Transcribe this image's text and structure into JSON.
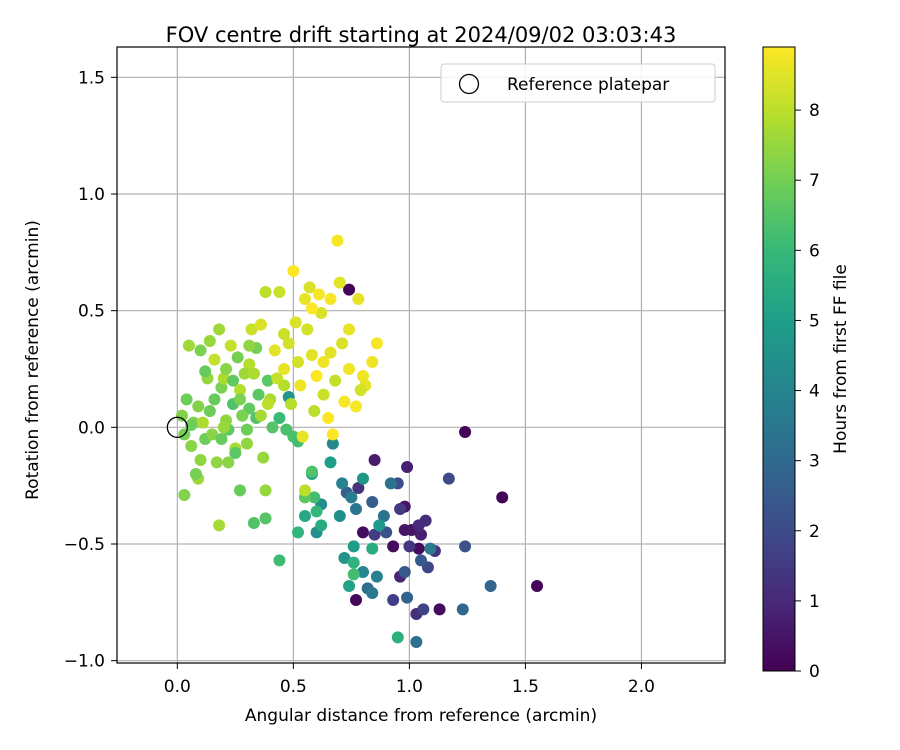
{
  "chart_data": {
    "type": "scatter",
    "title": "FOV centre drift starting at 2024/09/02 03:03:43",
    "xlabel": "Angular distance from reference (arcmin)",
    "ylabel": "Rotation from reference (arcmin)",
    "xlim": [
      -0.26,
      2.36
    ],
    "ylim": [
      -1.01,
      1.63
    ],
    "xticks": [
      0.0,
      0.5,
      1.0,
      1.5,
      2.0
    ],
    "xtick_labels": [
      "0.0",
      "0.5",
      "1.0",
      "1.5",
      "2.0"
    ],
    "yticks": [
      -1.0,
      -0.5,
      0.0,
      0.5,
      1.0,
      1.5
    ],
    "ytick_labels": [
      "−1.0",
      "−0.5",
      "0.0",
      "0.5",
      "1.0",
      "1.5"
    ],
    "grid": true,
    "colormap": "viridis",
    "colorbar": {
      "label": "Hours from first FF file",
      "range": [
        0,
        8.9
      ],
      "ticks": [
        0,
        1,
        2,
        3,
        4,
        5,
        6,
        7,
        8
      ],
      "tick_labels": [
        "0",
        "1",
        "2",
        "3",
        "4",
        "5",
        "6",
        "7",
        "8"
      ]
    },
    "legend": {
      "placement": "top-right",
      "entries": [
        {
          "label": "Reference platepar",
          "marker": "open-circle"
        }
      ]
    },
    "reference": {
      "x": 0.0,
      "y": 0.0
    },
    "points": [
      {
        "x": 1.24,
        "y": -0.02,
        "h": 0.1
      },
      {
        "x": 1.4,
        "y": -0.3,
        "h": 0.1
      },
      {
        "x": 1.55,
        "y": -0.68,
        "h": 0.1
      },
      {
        "x": 0.74,
        "y": 0.59,
        "h": 0.1
      },
      {
        "x": 0.77,
        "y": -0.74,
        "h": 0.2
      },
      {
        "x": 0.93,
        "y": -0.51,
        "h": 0.3
      },
      {
        "x": 0.8,
        "y": -0.45,
        "h": 0.3
      },
      {
        "x": 1.13,
        "y": -0.78,
        "h": 0.3
      },
      {
        "x": 1.04,
        "y": -0.52,
        "h": 0.3
      },
      {
        "x": 0.98,
        "y": -0.34,
        "h": 0.5
      },
      {
        "x": 1.01,
        "y": -0.44,
        "h": 0.5
      },
      {
        "x": 0.98,
        "y": -0.44,
        "h": 0.5
      },
      {
        "x": 0.85,
        "y": -0.14,
        "h": 0.7
      },
      {
        "x": 0.99,
        "y": -0.17,
        "h": 0.8
      },
      {
        "x": 1.05,
        "y": -0.46,
        "h": 0.8
      },
      {
        "x": 0.96,
        "y": -0.64,
        "h": 0.9
      },
      {
        "x": 1.04,
        "y": -0.42,
        "h": 1.0
      },
      {
        "x": 1.07,
        "y": -0.4,
        "h": 1.1
      },
      {
        "x": 1.03,
        "y": -0.8,
        "h": 1.2
      },
      {
        "x": 1.11,
        "y": -0.53,
        "h": 1.3
      },
      {
        "x": 0.78,
        "y": -0.26,
        "h": 1.3
      },
      {
        "x": 1.0,
        "y": -0.51,
        "h": 1.4
      },
      {
        "x": 0.96,
        "y": -0.35,
        "h": 1.5
      },
      {
        "x": 0.85,
        "y": -0.46,
        "h": 1.6
      },
      {
        "x": 0.93,
        "y": -0.74,
        "h": 1.7
      },
      {
        "x": 1.06,
        "y": -0.78,
        "h": 1.8
      },
      {
        "x": 1.08,
        "y": -0.6,
        "h": 1.9
      },
      {
        "x": 1.17,
        "y": -0.22,
        "h": 2.0
      },
      {
        "x": 0.95,
        "y": -0.24,
        "h": 2.1
      },
      {
        "x": 0.9,
        "y": -0.45,
        "h": 2.2
      },
      {
        "x": 1.24,
        "y": -0.51,
        "h": 2.3
      },
      {
        "x": 0.98,
        "y": -0.62,
        "h": 2.4
      },
      {
        "x": 1.05,
        "y": -0.57,
        "h": 2.5
      },
      {
        "x": 0.84,
        "y": -0.32,
        "h": 2.6
      },
      {
        "x": 0.73,
        "y": -0.28,
        "h": 2.7
      },
      {
        "x": 0.99,
        "y": -0.73,
        "h": 2.8
      },
      {
        "x": 1.35,
        "y": -0.68,
        "h": 2.9
      },
      {
        "x": 1.23,
        "y": -0.78,
        "h": 3.0
      },
      {
        "x": 0.82,
        "y": -0.69,
        "h": 3.1
      },
      {
        "x": 1.03,
        "y": -0.92,
        "h": 3.2
      },
      {
        "x": 0.92,
        "y": -0.24,
        "h": 3.3
      },
      {
        "x": 0.89,
        "y": -0.38,
        "h": 3.4
      },
      {
        "x": 0.77,
        "y": -0.35,
        "h": 3.5
      },
      {
        "x": 0.84,
        "y": -0.71,
        "h": 3.6
      },
      {
        "x": 1.09,
        "y": -0.52,
        "h": 3.7
      },
      {
        "x": 0.75,
        "y": -0.3,
        "h": 3.8
      },
      {
        "x": 0.86,
        "y": -0.64,
        "h": 3.9
      },
      {
        "x": 0.71,
        "y": -0.24,
        "h": 4.0
      },
      {
        "x": 0.8,
        "y": -0.62,
        "h": 4.1
      },
      {
        "x": 0.67,
        "y": -0.07,
        "h": 4.2
      },
      {
        "x": 0.62,
        "y": -0.33,
        "h": 4.3
      },
      {
        "x": 0.7,
        "y": -0.38,
        "h": 4.4
      },
      {
        "x": 0.6,
        "y": -0.45,
        "h": 4.5
      },
      {
        "x": 0.72,
        "y": -0.56,
        "h": 4.6
      },
      {
        "x": 0.48,
        "y": 0.13,
        "h": 4.6
      },
      {
        "x": 0.8,
        "y": -0.22,
        "h": 4.7
      },
      {
        "x": 0.87,
        "y": -0.42,
        "h": 4.8
      },
      {
        "x": 0.76,
        "y": -0.51,
        "h": 4.9
      },
      {
        "x": 0.66,
        "y": -0.15,
        "h": 5.0
      },
      {
        "x": 0.74,
        "y": -0.68,
        "h": 5.1
      },
      {
        "x": 0.58,
        "y": -0.2,
        "h": 5.2
      },
      {
        "x": 0.55,
        "y": -0.38,
        "h": 5.3
      },
      {
        "x": 0.62,
        "y": -0.42,
        "h": 5.4
      },
      {
        "x": 0.84,
        "y": -0.52,
        "h": 5.5
      },
      {
        "x": 0.95,
        "y": -0.9,
        "h": 5.6
      },
      {
        "x": 0.76,
        "y": -0.58,
        "h": 5.7
      },
      {
        "x": 0.52,
        "y": -0.45,
        "h": 5.8
      },
      {
        "x": 0.6,
        "y": -0.36,
        "h": 5.9
      },
      {
        "x": 0.44,
        "y": 0.04,
        "h": 6.0
      },
      {
        "x": 0.44,
        "y": -0.57,
        "h": 6.1
      },
      {
        "x": 0.59,
        "y": -0.3,
        "h": 6.2
      },
      {
        "x": 0.76,
        "y": -0.63,
        "h": 6.2
      },
      {
        "x": 0.5,
        "y": -0.04,
        "h": 6.3
      },
      {
        "x": 0.28,
        "y": 0.05,
        "h": 6.3
      },
      {
        "x": 0.24,
        "y": 0.1,
        "h": 6.4
      },
      {
        "x": 0.33,
        "y": -0.41,
        "h": 6.4
      },
      {
        "x": 0.38,
        "y": -0.39,
        "h": 6.5
      },
      {
        "x": 0.34,
        "y": 0.04,
        "h": 6.5
      },
      {
        "x": 0.55,
        "y": -0.3,
        "h": 6.6
      },
      {
        "x": 0.39,
        "y": 0.2,
        "h": 6.6
      },
      {
        "x": 0.22,
        "y": -0.01,
        "h": 6.7
      },
      {
        "x": 0.31,
        "y": 0.08,
        "h": 6.7
      },
      {
        "x": 0.27,
        "y": -0.27,
        "h": 6.8
      },
      {
        "x": 0.16,
        "y": 0.12,
        "h": 6.8
      },
      {
        "x": 0.12,
        "y": -0.05,
        "h": 6.9
      },
      {
        "x": 0.04,
        "y": 0.12,
        "h": 6.9
      },
      {
        "x": 0.34,
        "y": 0.34,
        "h": 7.0
      },
      {
        "x": 0.26,
        "y": 0.3,
        "h": 7.0
      },
      {
        "x": 0.19,
        "y": 0.17,
        "h": 7.1
      },
      {
        "x": 0.1,
        "y": 0.33,
        "h": 7.1
      },
      {
        "x": 0.07,
        "y": 0.02,
        "h": 7.2
      },
      {
        "x": 0.02,
        "y": 0.05,
        "h": 7.2
      },
      {
        "x": 0.06,
        "y": -0.08,
        "h": 7.3
      },
      {
        "x": 0.15,
        "y": -0.03,
        "h": 7.3
      },
      {
        "x": 0.21,
        "y": 0.03,
        "h": 7.4
      },
      {
        "x": 0.3,
        "y": -0.07,
        "h": 7.4
      },
      {
        "x": 0.37,
        "y": -0.13,
        "h": 7.5
      },
      {
        "x": 0.14,
        "y": 0.37,
        "h": 7.5
      },
      {
        "x": 0.05,
        "y": 0.35,
        "h": 7.6
      },
      {
        "x": 0.09,
        "y": -0.22,
        "h": 7.6
      },
      {
        "x": 0.18,
        "y": -0.42,
        "h": 7.7
      },
      {
        "x": 0.25,
        "y": -0.09,
        "h": 7.7
      },
      {
        "x": 0.11,
        "y": 0.02,
        "h": 7.8
      },
      {
        "x": 0.2,
        "y": 0.21,
        "h": 7.8
      },
      {
        "x": 0.27,
        "y": 0.16,
        "h": 7.9
      },
      {
        "x": 0.31,
        "y": 0.27,
        "h": 7.9
      },
      {
        "x": 0.38,
        "y": 0.58,
        "h": 8.0
      },
      {
        "x": 0.55,
        "y": -0.27,
        "h": 8.0
      },
      {
        "x": 0.16,
        "y": 0.29,
        "h": 8.1
      },
      {
        "x": 0.23,
        "y": 0.35,
        "h": 8.1
      },
      {
        "x": 0.32,
        "y": 0.42,
        "h": 8.2
      },
      {
        "x": 0.44,
        "y": 0.58,
        "h": 8.2
      },
      {
        "x": 0.48,
        "y": 0.36,
        "h": 8.3
      },
      {
        "x": 0.52,
        "y": 0.28,
        "h": 8.3
      },
      {
        "x": 0.57,
        "y": 0.6,
        "h": 8.4
      },
      {
        "x": 0.62,
        "y": 0.49,
        "h": 8.4
      },
      {
        "x": 0.66,
        "y": 0.32,
        "h": 8.5
      },
      {
        "x": 0.7,
        "y": 0.62,
        "h": 8.5
      },
      {
        "x": 0.74,
        "y": 0.42,
        "h": 8.6
      },
      {
        "x": 0.78,
        "y": 0.55,
        "h": 8.6
      },
      {
        "x": 0.8,
        "y": 0.22,
        "h": 8.7
      },
      {
        "x": 0.84,
        "y": 0.28,
        "h": 8.7
      },
      {
        "x": 0.86,
        "y": 0.36,
        "h": 8.8
      },
      {
        "x": 0.69,
        "y": 0.8,
        "h": 8.8
      },
      {
        "x": 0.5,
        "y": 0.67,
        "h": 8.9
      },
      {
        "x": 0.6,
        "y": 0.22,
        "h": 8.9
      },
      {
        "x": 0.65,
        "y": 0.04,
        "h": 8.9
      },
      {
        "x": 0.72,
        "y": 0.11,
        "h": 8.8
      },
      {
        "x": 0.77,
        "y": 0.09,
        "h": 8.8
      },
      {
        "x": 0.53,
        "y": 0.18,
        "h": 8.7
      },
      {
        "x": 0.46,
        "y": 0.25,
        "h": 8.6
      },
      {
        "x": 0.42,
        "y": 0.33,
        "h": 8.5
      },
      {
        "x": 0.36,
        "y": 0.44,
        "h": 8.4
      },
      {
        "x": 0.56,
        "y": 0.42,
        "h": 8.3
      },
      {
        "x": 0.63,
        "y": 0.14,
        "h": 8.2
      },
      {
        "x": 0.68,
        "y": 0.2,
        "h": 8.1
      },
      {
        "x": 0.59,
        "y": 0.07,
        "h": 8.0
      },
      {
        "x": 0.46,
        "y": 0.18,
        "h": 7.9
      },
      {
        "x": 0.4,
        "y": 0.12,
        "h": 7.8
      },
      {
        "x": 0.29,
        "y": 0.23,
        "h": 7.6
      },
      {
        "x": 0.13,
        "y": 0.21,
        "h": 7.5
      },
      {
        "x": 0.1,
        "y": -0.14,
        "h": 7.4
      },
      {
        "x": 0.22,
        "y": -0.15,
        "h": 7.3
      },
      {
        "x": 0.03,
        "y": -0.29,
        "h": 7.2
      },
      {
        "x": 0.08,
        "y": -0.2,
        "h": 7.0
      },
      {
        "x": 0.14,
        "y": 0.07,
        "h": 6.9
      },
      {
        "x": 0.19,
        "y": -0.05,
        "h": 6.8
      },
      {
        "x": 0.24,
        "y": 0.2,
        "h": 6.7
      },
      {
        "x": 0.35,
        "y": 0.14,
        "h": 6.6
      },
      {
        "x": 0.41,
        "y": 0.0,
        "h": 6.5
      },
      {
        "x": 0.58,
        "y": -0.19,
        "h": 6.4
      },
      {
        "x": 0.47,
        "y": -0.01,
        "h": 6.3
      },
      {
        "x": 0.52,
        "y": -0.06,
        "h": 6.2
      },
      {
        "x": 0.38,
        "y": -0.27,
        "h": 7.5
      },
      {
        "x": 0.55,
        "y": 0.55,
        "h": 8.6
      },
      {
        "x": 0.63,
        "y": 0.28,
        "h": 8.7
      },
      {
        "x": 0.71,
        "y": 0.36,
        "h": 8.4
      },
      {
        "x": 0.61,
        "y": 0.57,
        "h": 8.8
      },
      {
        "x": 0.67,
        "y": -0.03,
        "h": 8.9
      },
      {
        "x": 0.81,
        "y": 0.18,
        "h": 8.6
      },
      {
        "x": 0.33,
        "y": 0.23,
        "h": 7.8
      },
      {
        "x": 0.18,
        "y": 0.42,
        "h": 7.6
      },
      {
        "x": 0.21,
        "y": 0.25,
        "h": 7.3
      },
      {
        "x": 0.27,
        "y": 0.12,
        "h": 7.1
      },
      {
        "x": 0.06,
        "y": 0.01,
        "h": 6.9
      },
      {
        "x": 0.09,
        "y": 0.09,
        "h": 7.2
      },
      {
        "x": 0.3,
        "y": -0.01,
        "h": 6.9
      },
      {
        "x": 0.25,
        "y": -0.11,
        "h": 6.6
      },
      {
        "x": 0.17,
        "y": -0.15,
        "h": 7.4
      },
      {
        "x": 0.36,
        "y": 0.05,
        "h": 7.7
      },
      {
        "x": 0.43,
        "y": 0.21,
        "h": 8.1
      },
      {
        "x": 0.51,
        "y": 0.45,
        "h": 8.4
      },
      {
        "x": 0.58,
        "y": 0.31,
        "h": 8.5
      },
      {
        "x": 0.74,
        "y": 0.25,
        "h": 8.7
      },
      {
        "x": 0.79,
        "y": 0.16,
        "h": 8.3
      },
      {
        "x": 0.58,
        "y": 0.51,
        "h": 8.9
      },
      {
        "x": 0.66,
        "y": 0.55,
        "h": 8.8
      },
      {
        "x": 0.49,
        "y": 0.1,
        "h": 7.9
      },
      {
        "x": 0.31,
        "y": 0.35,
        "h": 7.4
      },
      {
        "x": 0.12,
        "y": 0.24,
        "h": 6.8
      },
      {
        "x": 0.03,
        "y": -0.03,
        "h": 7.0
      },
      {
        "x": 0.2,
        "y": 0.0,
        "h": 7.5
      },
      {
        "x": 0.28,
        "y": 0.05,
        "h": 7.1
      },
      {
        "x": 0.39,
        "y": 0.1,
        "h": 8.0
      },
      {
        "x": 0.46,
        "y": 0.4,
        "h": 8.2
      },
      {
        "x": 0.54,
        "y": -0.04,
        "h": 8.6
      }
    ]
  }
}
